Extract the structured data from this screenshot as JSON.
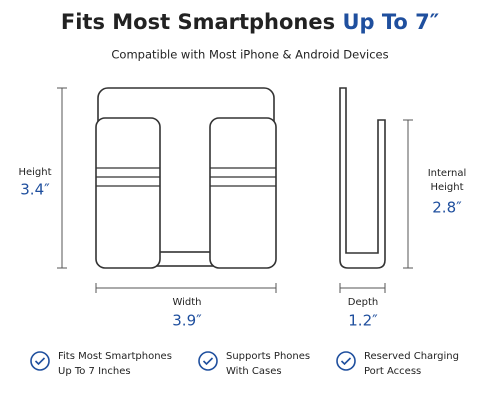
{
  "header": {
    "title": "Fits Most Smartphones",
    "title_highlight": "Up To 7″",
    "subtitle": "Compatible with Most iPhone & Android Devices"
  },
  "dimensions": {
    "height": {
      "label": "Height",
      "value": "3.4″"
    },
    "width": {
      "label": "Width",
      "value": "3.9″"
    },
    "internal_height": {
      "label": [
        "Internal",
        "Height"
      ],
      "value": "2.8″"
    },
    "depth": {
      "label": "Depth",
      "value": "1.2″"
    }
  },
  "features": [
    {
      "lines": [
        "Fits Most Smartphones",
        "Up To 7 Inches"
      ]
    },
    {
      "lines": [
        "Supports Phones",
        "With Cases"
      ]
    },
    {
      "lines": [
        "Reserved Charging",
        "Port Access"
      ]
    }
  ]
}
